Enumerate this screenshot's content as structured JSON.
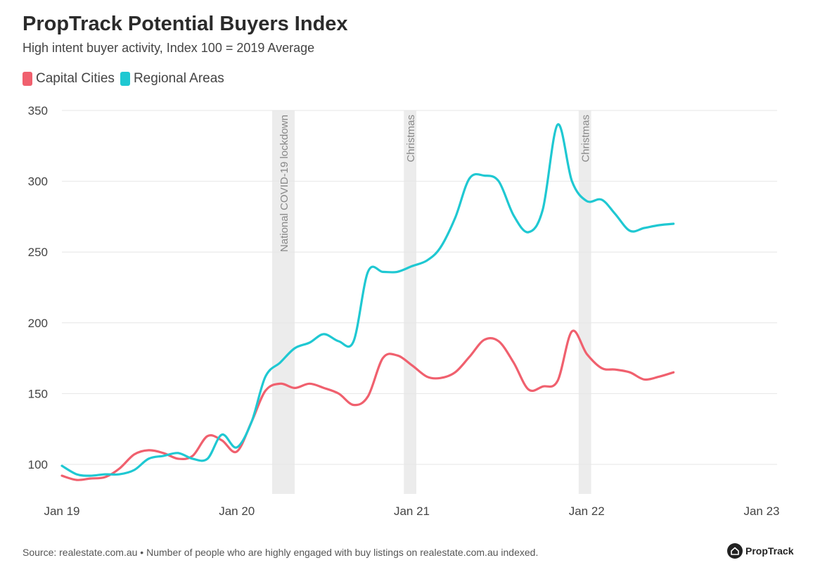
{
  "header": {
    "title": "PropTrack Potential Buyers Index",
    "subtitle": "High intent buyer activity, Index 100 = 2019 Average"
  },
  "legend": [
    {
      "label": "Capital Cities",
      "color": "#f0606e"
    },
    {
      "label": "Regional Areas",
      "color": "#1fc8d2"
    }
  ],
  "footer": {
    "source": "Source: realestate.com.au • Number of people who are highly engaged with buy listings on realestate.com.au indexed.",
    "brand": "PropTrack"
  },
  "chart_data": {
    "type": "line",
    "title": "PropTrack Potential Buyers Index",
    "subtitle": "High intent buyer activity, Index 100 = 2019 Average",
    "xlabel": "",
    "ylabel": "",
    "x_ticks": [
      "Jan 19",
      "Jan 20",
      "Jan 21",
      "Jan 22",
      "Jan 23"
    ],
    "x_range": [
      "2019-01",
      "2023-01"
    ],
    "ylim": [
      80,
      350
    ],
    "y_ticks": [
      100,
      150,
      200,
      250,
      300,
      350
    ],
    "grid": "horizontal",
    "legend_position": "top-left",
    "shaded_periods": [
      {
        "label": "National COVID-19 lockdown",
        "start": "2020-03-15",
        "end": "2020-05-01"
      },
      {
        "label": "Christmas",
        "start": "2020-12-15",
        "end": "2021-01-10"
      },
      {
        "label": "Christmas",
        "start": "2021-12-15",
        "end": "2022-01-10"
      }
    ],
    "series": [
      {
        "name": "Capital Cities",
        "color": "#f0606e",
        "points": [
          [
            "2019-01-01",
            92
          ],
          [
            "2019-02-01",
            89
          ],
          [
            "2019-03-01",
            90
          ],
          [
            "2019-04-01",
            91
          ],
          [
            "2019-05-01",
            97
          ],
          [
            "2019-06-01",
            107
          ],
          [
            "2019-07-01",
            110
          ],
          [
            "2019-08-01",
            108
          ],
          [
            "2019-09-01",
            104
          ],
          [
            "2019-10-01",
            106
          ],
          [
            "2019-11-01",
            120
          ],
          [
            "2019-12-01",
            117
          ],
          [
            "2020-01-01",
            109
          ],
          [
            "2020-02-01",
            130
          ],
          [
            "2020-03-01",
            152
          ],
          [
            "2020-04-01",
            157
          ],
          [
            "2020-05-01",
            154
          ],
          [
            "2020-06-01",
            157
          ],
          [
            "2020-07-01",
            154
          ],
          [
            "2020-08-01",
            150
          ],
          [
            "2020-09-01",
            142
          ],
          [
            "2020-10-01",
            148
          ],
          [
            "2020-11-01",
            175
          ],
          [
            "2020-12-01",
            177
          ],
          [
            "2021-01-01",
            170
          ],
          [
            "2021-02-01",
            162
          ],
          [
            "2021-03-01",
            161
          ],
          [
            "2021-04-01",
            165
          ],
          [
            "2021-05-01",
            176
          ],
          [
            "2021-06-01",
            188
          ],
          [
            "2021-07-01",
            187
          ],
          [
            "2021-08-01",
            172
          ],
          [
            "2021-09-01",
            153
          ],
          [
            "2021-10-01",
            155
          ],
          [
            "2021-11-01",
            159
          ],
          [
            "2021-12-01",
            194
          ],
          [
            "2022-01-01",
            178
          ],
          [
            "2022-02-01",
            168
          ],
          [
            "2022-03-01",
            167
          ],
          [
            "2022-04-01",
            165
          ],
          [
            "2022-05-01",
            160
          ],
          [
            "2022-06-01",
            162
          ],
          [
            "2022-07-01",
            165
          ]
        ]
      },
      {
        "name": "Regional Areas",
        "color": "#1fc8d2",
        "points": [
          [
            "2019-01-01",
            99
          ],
          [
            "2019-02-01",
            93
          ],
          [
            "2019-03-01",
            92
          ],
          [
            "2019-04-01",
            93
          ],
          [
            "2019-05-01",
            93
          ],
          [
            "2019-06-01",
            96
          ],
          [
            "2019-07-01",
            104
          ],
          [
            "2019-08-01",
            106
          ],
          [
            "2019-09-01",
            108
          ],
          [
            "2019-10-01",
            104
          ],
          [
            "2019-11-01",
            104
          ],
          [
            "2019-12-01",
            121
          ],
          [
            "2020-01-01",
            112
          ],
          [
            "2020-02-01",
            130
          ],
          [
            "2020-03-01",
            162
          ],
          [
            "2020-04-01",
            172
          ],
          [
            "2020-05-01",
            182
          ],
          [
            "2020-06-01",
            186
          ],
          [
            "2020-07-01",
            192
          ],
          [
            "2020-08-01",
            187
          ],
          [
            "2020-09-01",
            187
          ],
          [
            "2020-10-01",
            236
          ],
          [
            "2020-11-01",
            236
          ],
          [
            "2020-12-01",
            236
          ],
          [
            "2021-01-01",
            240
          ],
          [
            "2021-02-01",
            244
          ],
          [
            "2021-03-01",
            253
          ],
          [
            "2021-04-01",
            274
          ],
          [
            "2021-05-01",
            302
          ],
          [
            "2021-06-01",
            304
          ],
          [
            "2021-07-01",
            300
          ],
          [
            "2021-08-01",
            276
          ],
          [
            "2021-09-01",
            264
          ],
          [
            "2021-10-01",
            280
          ],
          [
            "2021-11-01",
            340
          ],
          [
            "2021-12-01",
            300
          ],
          [
            "2022-01-01",
            286
          ],
          [
            "2022-02-01",
            287
          ],
          [
            "2022-03-01",
            277
          ],
          [
            "2022-04-01",
            265
          ],
          [
            "2022-05-01",
            267
          ],
          [
            "2022-06-01",
            269
          ],
          [
            "2022-07-01",
            270
          ]
        ]
      }
    ]
  }
}
